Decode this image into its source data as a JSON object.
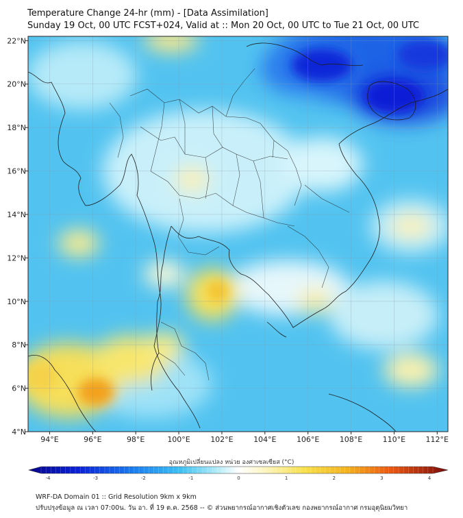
{
  "header": {
    "title": "Temperature Change 24-hr (mm) - [Data Assimilation]",
    "subtitle": "Sunday 19 Oct, 00 UTC FCST+024, Valid at :: Mon 20 Oct, 00 UTC to Tue 21 Oct, 00 UTC"
  },
  "map": {
    "lon_ticks": [
      "94°E",
      "96°E",
      "98°E",
      "100°E",
      "102°E",
      "104°E",
      "106°E",
      "108°E",
      "110°E",
      "112°E"
    ],
    "lat_ticks": [
      "22°N",
      "20°N",
      "18°N",
      "16°N",
      "14°N",
      "12°N",
      "10°N",
      "8°N",
      "6°N",
      "4°N"
    ],
    "lon_range": [
      93,
      112.5
    ],
    "lat_range": [
      4,
      22.2
    ],
    "colors": {
      "cooling_strong": "#0a1fd6",
      "cooling_mid": "#2fa8ef",
      "cooling_light": "#aee6f8",
      "neutral": "#eef8fb",
      "warming_light": "#fbf3b5",
      "warming_mid": "#f6dd4a",
      "warming_strong": "#f2a11e"
    }
  },
  "colorbar": {
    "label": "อุณหภูมิเปลี่ยนแปลง หน่วย องศาเซลเซียส (°C)",
    "ticks": [
      "-4",
      "-3",
      "-2",
      "-1",
      "0",
      "1",
      "2",
      "3",
      "4"
    ]
  },
  "footer": {
    "line1": "WRF-DA Domain 01 :: Grid Resolution 9km x 9km",
    "line2": "ปรับปรุงข้อมูล ณ เวลา 07:00น. วัน อา. ที่ 19 ต.ค. 2568 -- © ส่วนพยากรณ์อากาศเชิงตัวเลข กองพยากรณ์อากาศ กรมอุตุนิยมวิทยา"
  }
}
